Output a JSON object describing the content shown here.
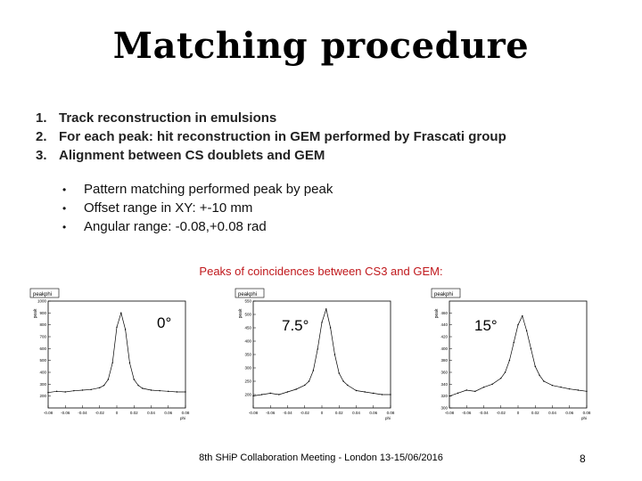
{
  "slide": {
    "title": "Matching procedure",
    "steps": [
      {
        "num": "1.",
        "text": "Track reconstruction in emulsions"
      },
      {
        "num": "2.",
        "text": "For each peak: hit reconstruction in GEM performed by Frascati group"
      },
      {
        "num": "3.",
        "text": "Alignment between CS doublets and GEM"
      }
    ],
    "bullets": [
      {
        "dot": "•",
        "text": "Pattern matching performed peak by peak"
      },
      {
        "dot": "•",
        "text": "Offset range in XY: +-10 mm"
      },
      {
        "dot": "•",
        "text": "Angular range: -0.08,+0.08 rad"
      }
    ],
    "caption": "Peaks of coincidences between CS3 and GEM:",
    "footer": "8th SHiP Collaboration Meeting - London 13-15/06/2016",
    "page_number": "8"
  },
  "plots": [
    {
      "label": "peakphi",
      "ylabel": "peak",
      "angle": "0°"
    },
    {
      "label": "peakphi",
      "ylabel": "peak",
      "angle": "7.5°"
    },
    {
      "label": "peakphi",
      "ylabel": "peak",
      "angle": "15°"
    }
  ],
  "chart_data": [
    {
      "type": "line",
      "title": "peakphi",
      "xlabel": "phi",
      "ylabel": "peak",
      "xlim": [
        -0.08,
        0.08
      ],
      "ylim": [
        100,
        1000
      ],
      "xticks": [
        "-0.08",
        "-0.06",
        "-0.04",
        "-0.02",
        "0",
        "0.02",
        "0.04",
        "0.06",
        "0.08"
      ],
      "yticks": [
        "200",
        "300",
        "400",
        "500",
        "600",
        "700",
        "800",
        "900",
        "1000"
      ],
      "x": [
        -0.08,
        -0.07,
        -0.06,
        -0.05,
        -0.04,
        -0.03,
        -0.02,
        -0.015,
        -0.01,
        -0.005,
        0,
        0.005,
        0.01,
        0.015,
        0.02,
        0.025,
        0.03,
        0.04,
        0.05,
        0.06,
        0.07,
        0.08
      ],
      "values": [
        230,
        240,
        235,
        245,
        250,
        255,
        270,
        290,
        340,
        480,
        780,
        900,
        760,
        480,
        340,
        290,
        265,
        250,
        245,
        240,
        235,
        235
      ]
    },
    {
      "type": "line",
      "title": "peakphi",
      "xlabel": "phi",
      "ylabel": "peak",
      "xlim": [
        -0.08,
        0.08
      ],
      "ylim": [
        150,
        550
      ],
      "xticks": [
        "-0.08",
        "-0.06",
        "-0.04",
        "-0.02",
        "0",
        "0.02",
        "0.04",
        "0.06",
        "0.08"
      ],
      "yticks": [
        "200",
        "250",
        "300",
        "350",
        "400",
        "450",
        "500",
        "550"
      ],
      "x": [
        -0.08,
        -0.07,
        -0.06,
        -0.05,
        -0.04,
        -0.03,
        -0.02,
        -0.015,
        -0.01,
        -0.005,
        0,
        0.005,
        0.01,
        0.015,
        0.02,
        0.025,
        0.03,
        0.04,
        0.05,
        0.06,
        0.07,
        0.08
      ],
      "values": [
        195,
        200,
        205,
        200,
        210,
        220,
        235,
        250,
        290,
        370,
        470,
        520,
        450,
        350,
        280,
        250,
        235,
        215,
        210,
        205,
        200,
        200
      ]
    },
    {
      "type": "line",
      "title": "peakphi",
      "xlabel": "phi",
      "ylabel": "peak",
      "xlim": [
        -0.08,
        0.08
      ],
      "ylim": [
        300,
        480
      ],
      "xticks": [
        "-0.08",
        "-0.06",
        "-0.04",
        "-0.02",
        "0",
        "0.02",
        "0.04",
        "0.06",
        "0.08"
      ],
      "yticks": [
        "300",
        "320",
        "340",
        "360",
        "380",
        "400",
        "420",
        "440",
        "460"
      ],
      "x": [
        -0.08,
        -0.07,
        -0.06,
        -0.05,
        -0.04,
        -0.03,
        -0.02,
        -0.015,
        -0.01,
        -0.005,
        0,
        0.005,
        0.01,
        0.015,
        0.02,
        0.025,
        0.03,
        0.04,
        0.05,
        0.06,
        0.07,
        0.08
      ],
      "values": [
        320,
        325,
        330,
        328,
        335,
        340,
        350,
        360,
        380,
        410,
        440,
        455,
        430,
        400,
        370,
        355,
        345,
        338,
        335,
        332,
        330,
        328
      ]
    }
  ]
}
